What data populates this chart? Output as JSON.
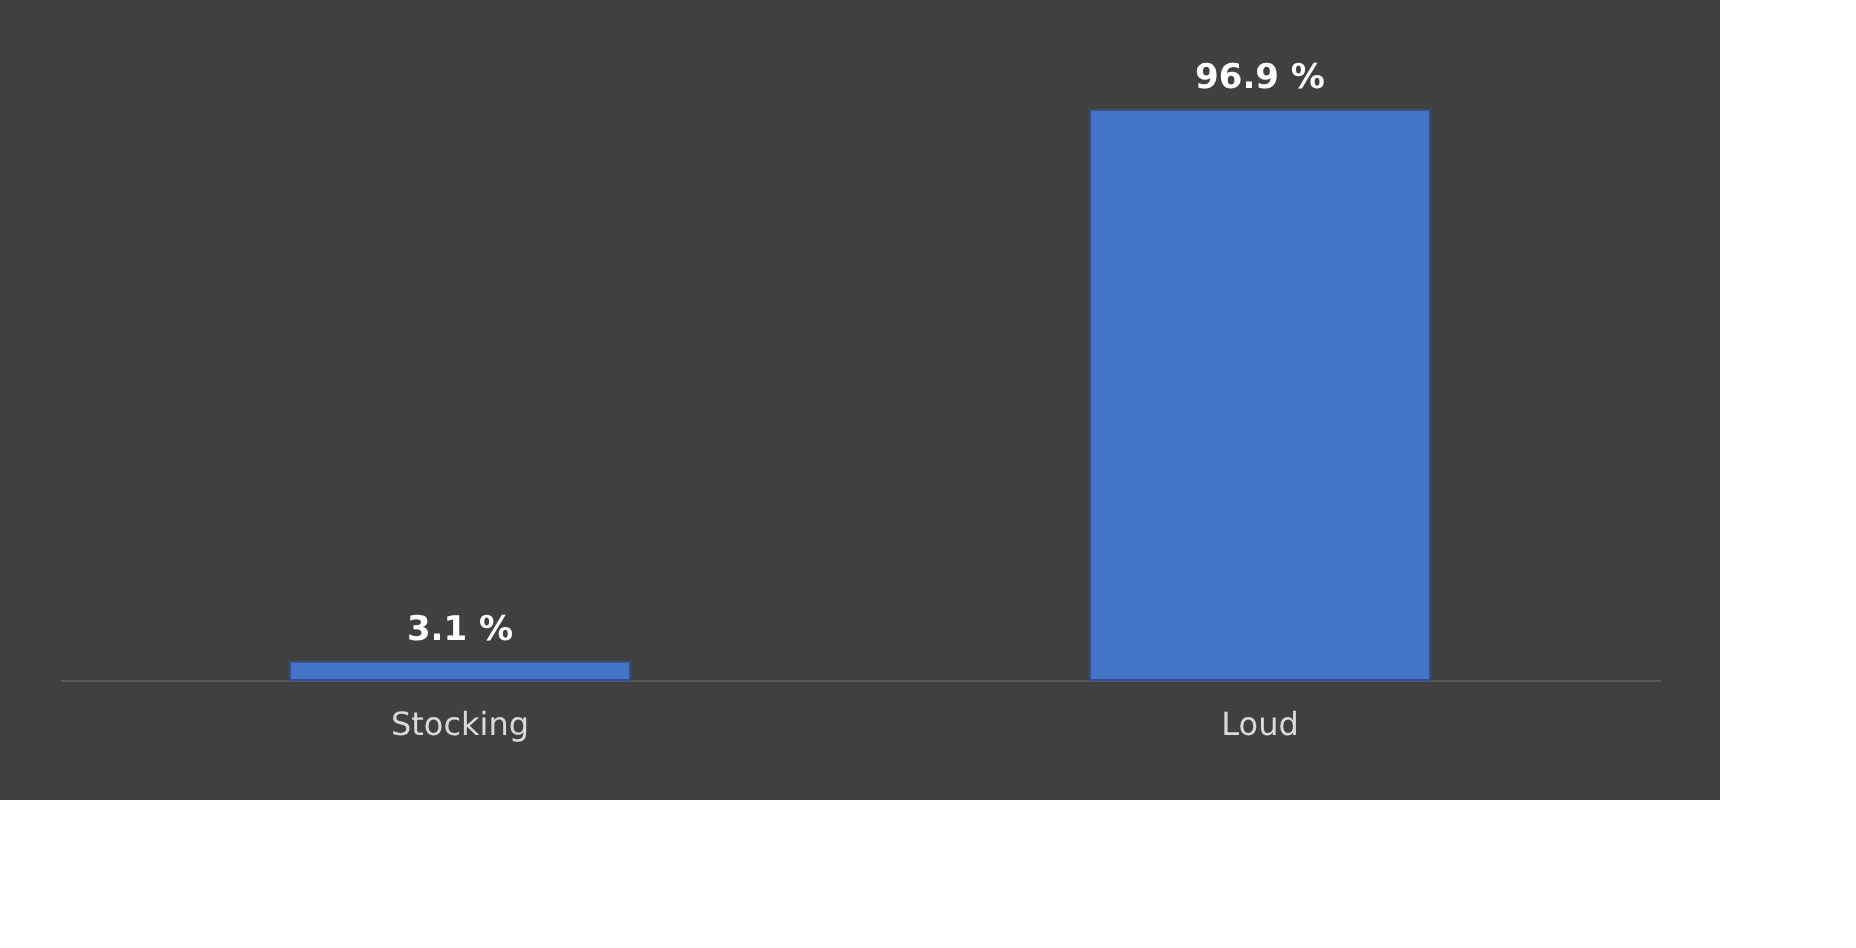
{
  "chart_data": {
    "type": "bar",
    "categories": [
      "Stocking",
      "Loud"
    ],
    "values": [
      3.1,
      96.9
    ],
    "value_labels": [
      "3.1 %",
      "96.9 %"
    ],
    "color": "#4472c4",
    "grid": false
  }
}
